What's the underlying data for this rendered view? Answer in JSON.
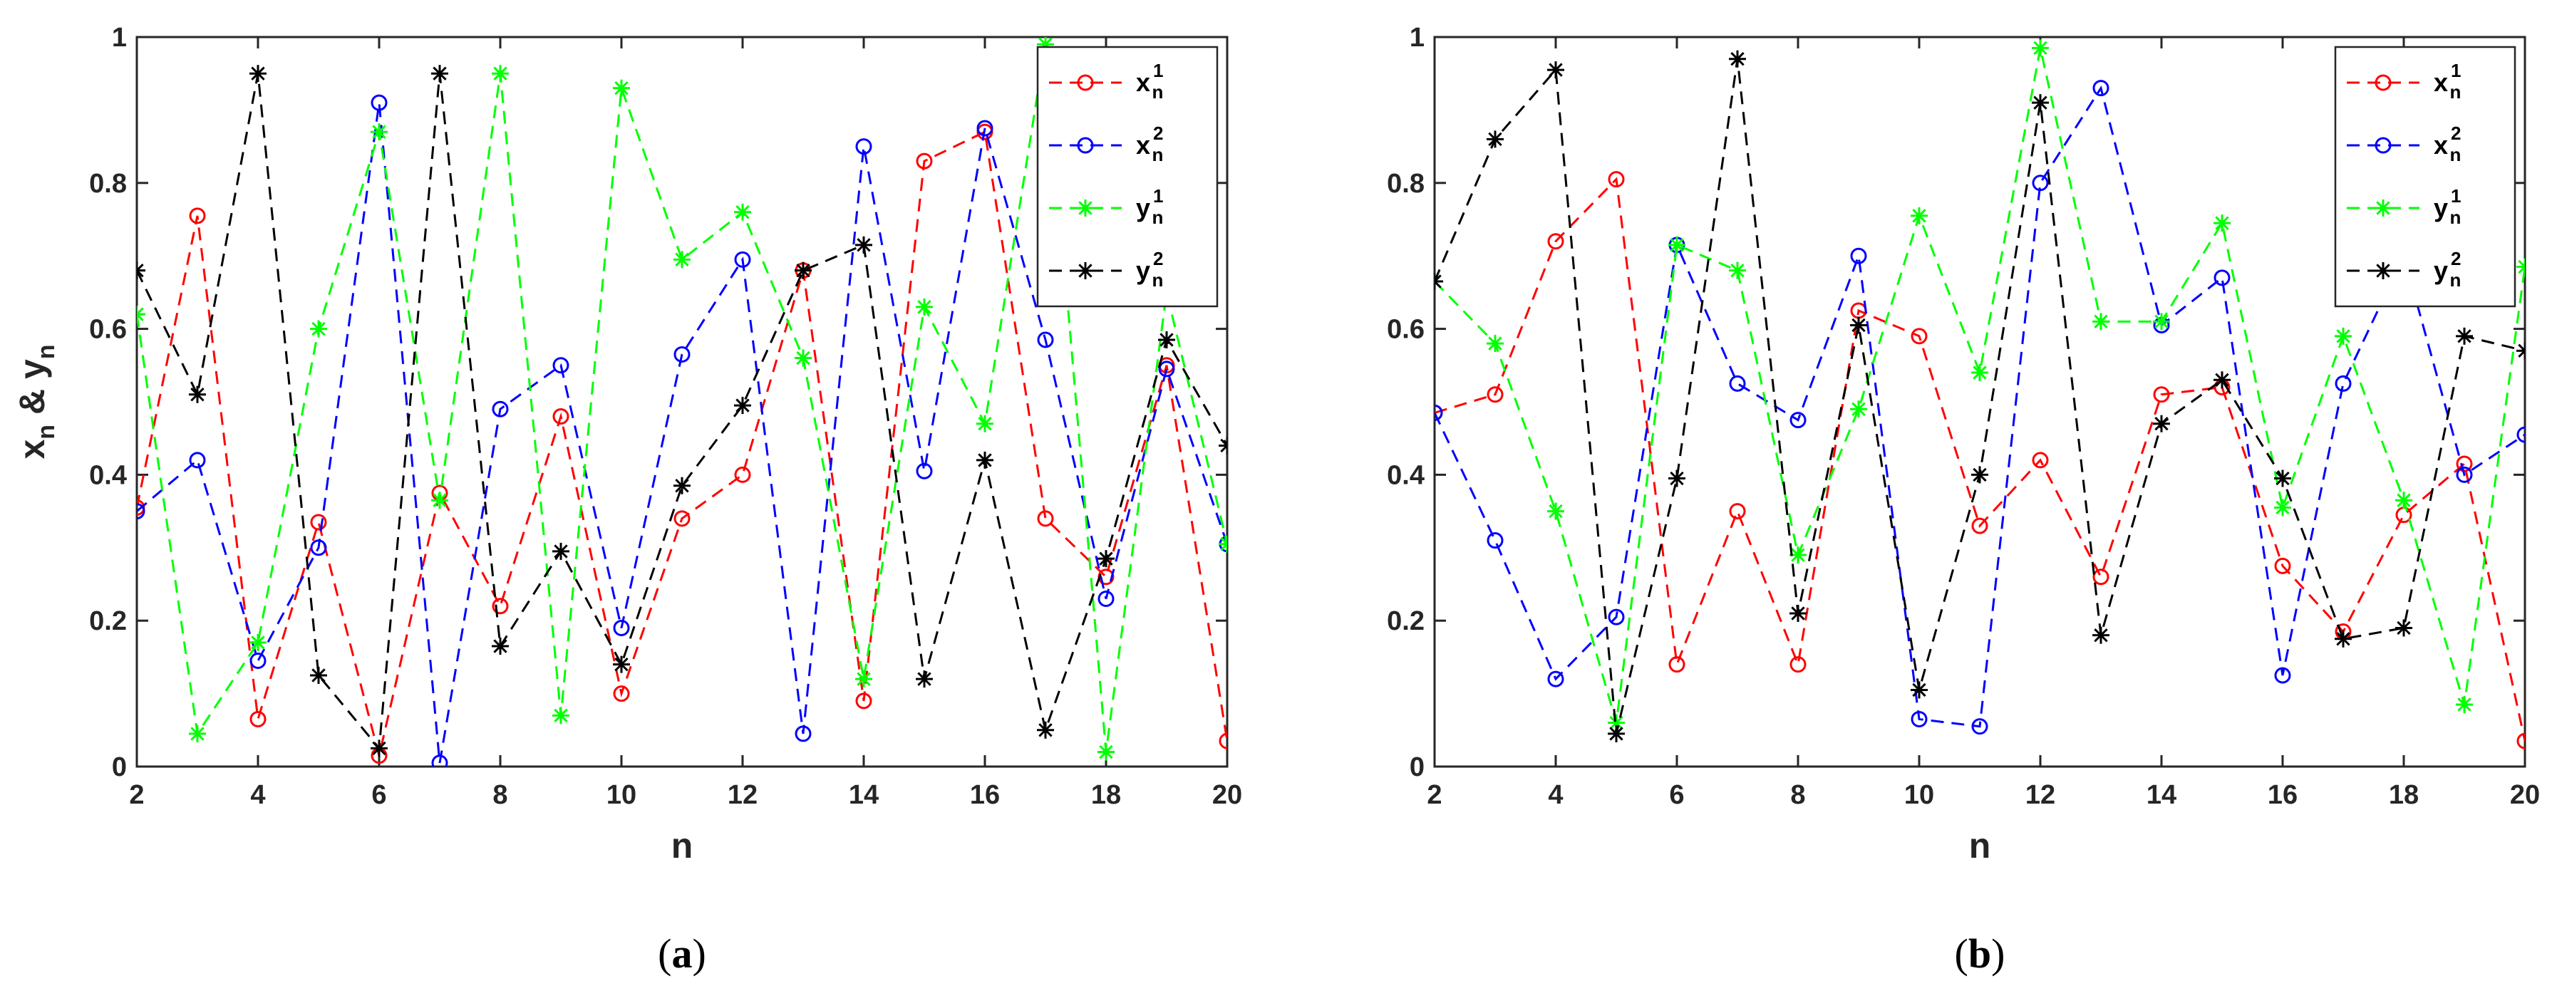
{
  "chart_data": [
    {
      "type": "line",
      "panel_label": "(a)",
      "xlabel": "n",
      "ylabel": "x_n & y_n",
      "xlim": [
        2,
        20
      ],
      "ylim": [
        0,
        1
      ],
      "xticks": [
        2,
        4,
        6,
        8,
        10,
        12,
        14,
        16,
        18,
        20
      ],
      "yticks": [
        0,
        0.2,
        0.4,
        0.6,
        0.8,
        1
      ],
      "grid": false,
      "legend_position": "top-right",
      "x": [
        2,
        3,
        4,
        5,
        6,
        7,
        8,
        9,
        10,
        11,
        12,
        13,
        14,
        15,
        16,
        17,
        18,
        19,
        20
      ],
      "series": [
        {
          "name": "x_n^1",
          "color": "#ff0000",
          "marker": "circle",
          "values": [
            0.355,
            0.755,
            0.065,
            0.335,
            0.015,
            0.375,
            0.22,
            0.48,
            0.1,
            0.34,
            0.4,
            0.68,
            0.09,
            0.83,
            0.87,
            0.34,
            0.26,
            0.55,
            0.035
          ]
        },
        {
          "name": "x_n^2",
          "color": "#0000ff",
          "marker": "circle",
          "values": [
            0.35,
            0.42,
            0.145,
            0.3,
            0.91,
            0.005,
            0.49,
            0.55,
            0.19,
            0.565,
            0.695,
            0.045,
            0.85,
            0.405,
            0.875,
            0.585,
            0.23,
            0.545,
            0.305
          ]
        },
        {
          "name": "y_n^1",
          "color": "#00ff00",
          "marker": "asterisk",
          "values": [
            0.62,
            0.045,
            0.17,
            0.6,
            0.87,
            0.365,
            0.95,
            0.07,
            0.93,
            0.695,
            0.76,
            0.56,
            0.12,
            0.63,
            0.47,
            0.99,
            0.02,
            0.65,
            0.305
          ]
        },
        {
          "name": "y_n^2",
          "color": "#000000",
          "marker": "asterisk",
          "values": [
            0.68,
            0.51,
            0.95,
            0.125,
            0.025,
            0.95,
            0.165,
            0.295,
            0.14,
            0.385,
            0.495,
            0.68,
            0.715,
            0.12,
            0.42,
            0.05,
            0.285,
            0.585,
            0.44
          ]
        }
      ]
    },
    {
      "type": "line",
      "panel_label": "(b)",
      "xlabel": "n",
      "ylabel": "",
      "xlim": [
        2,
        20
      ],
      "ylim": [
        0,
        1
      ],
      "xticks": [
        2,
        4,
        6,
        8,
        10,
        12,
        14,
        16,
        18,
        20
      ],
      "yticks": [
        0,
        0.2,
        0.4,
        0.6,
        0.8,
        1
      ],
      "grid": false,
      "legend_position": "top-right",
      "x": [
        2,
        3,
        4,
        5,
        6,
        7,
        8,
        9,
        10,
        11,
        12,
        13,
        14,
        15,
        16,
        17,
        18,
        19,
        20
      ],
      "series": [
        {
          "name": "x_n^1",
          "color": "#ff0000",
          "marker": "circle",
          "values": [
            0.485,
            0.51,
            0.72,
            0.805,
            0.14,
            0.35,
            0.14,
            0.625,
            0.59,
            0.33,
            0.42,
            0.26,
            0.51,
            0.52,
            0.275,
            0.185,
            0.345,
            0.415,
            0.035
          ]
        },
        {
          "name": "x_n^2",
          "color": "#0000ff",
          "marker": "circle",
          "values": [
            0.485,
            0.31,
            0.12,
            0.205,
            0.715,
            0.525,
            0.475,
            0.7,
            0.065,
            0.055,
            0.8,
            0.93,
            0.605,
            0.67,
            0.125,
            0.525,
            0.7,
            0.4,
            0.455
          ]
        },
        {
          "name": "y_n^1",
          "color": "#00ff00",
          "marker": "asterisk",
          "values": [
            0.665,
            0.58,
            0.35,
            0.06,
            0.715,
            0.68,
            0.29,
            0.49,
            0.755,
            0.54,
            0.985,
            0.61,
            0.61,
            0.745,
            0.355,
            0.59,
            0.365,
            0.085,
            0.685
          ]
        },
        {
          "name": "y_n^2",
          "color": "#000000",
          "marker": "asterisk",
          "values": [
            0.665,
            0.86,
            0.955,
            0.045,
            0.395,
            0.97,
            0.21,
            0.605,
            0.105,
            0.4,
            0.91,
            0.18,
            0.47,
            0.53,
            0.395,
            0.175,
            0.19,
            0.59,
            0.57
          ]
        }
      ]
    }
  ]
}
